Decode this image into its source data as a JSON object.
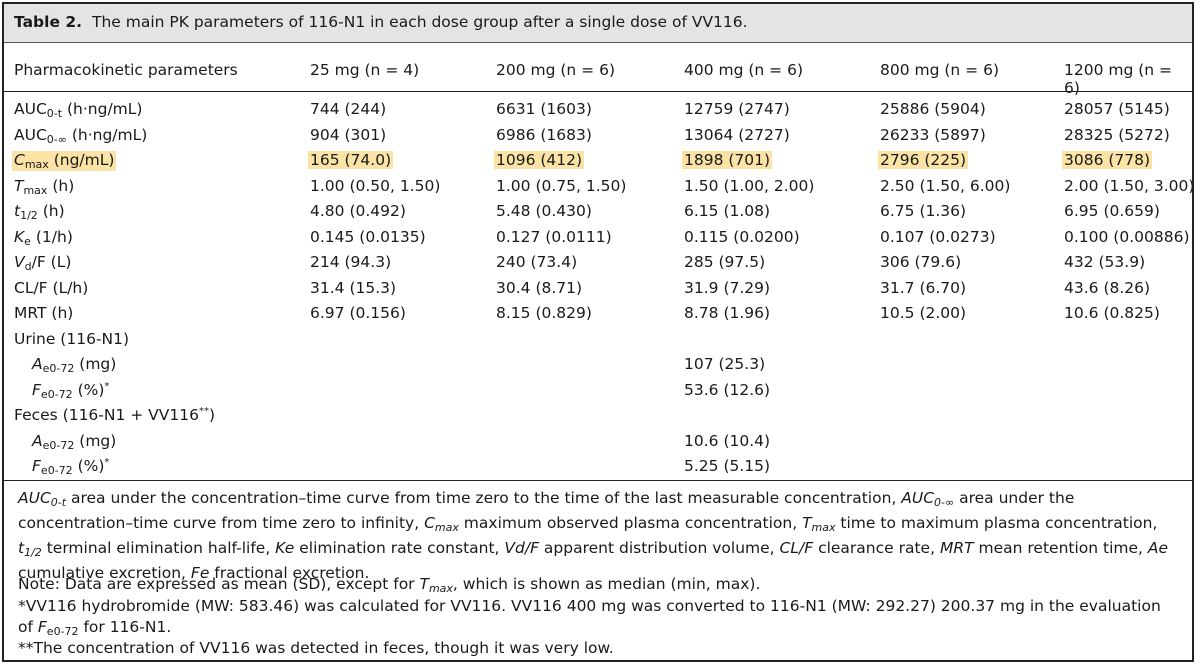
{
  "table": {
    "label": "Table 2.",
    "caption": "The main PK parameters of 116-N1 in each dose group after a single dose of VV116.",
    "header": {
      "param": "Pharmacokinetic parameters",
      "cols": [
        "25 mg (n = 4)",
        "200 mg (n = 6)",
        "400 mg (n = 6)",
        "800 mg (n = 6)",
        "1200 mg (n = 6)"
      ]
    },
    "rows": [
      {
        "label": "AUC",
        "sub": "0-t",
        "unit": " (h·ng/mL)",
        "values": [
          "744 (244)",
          "6631 (1603)",
          "12759 (2747)",
          "25886 (5904)",
          "28057 (5145)"
        ]
      },
      {
        "label": "AUC",
        "sub": "0-∞",
        "unit": " (h·ng/mL)",
        "values": [
          "904 (301)",
          "6986 (1683)",
          "13064 (2727)",
          "26233 (5897)",
          "28325 (5272)"
        ]
      },
      {
        "label": "C",
        "sub": "max",
        "unit": " (ng/mL)",
        "values": [
          "165 (74.0)",
          "1096 (412)",
          "1898 (701)",
          "2796 (225)",
          "3086 (778)"
        ]
      },
      {
        "label": "T",
        "sub": "max",
        "unit": " (h)",
        "values": [
          "1.00 (0.50, 1.50)",
          "1.00 (0.75, 1.50)",
          "1.50 (1.00, 2.00)",
          "2.50 (1.50, 6.00)",
          "2.00 (1.50, 3.00)"
        ]
      },
      {
        "label": "t",
        "sub": "1/2",
        "unit": " (h)",
        "values": [
          "4.80 (0.492)",
          "5.48 (0.430)",
          "6.15 (1.08)",
          "6.75 (1.36)",
          "6.95 (0.659)"
        ]
      },
      {
        "label": "K",
        "sub": "e",
        "unit": " (1/h)",
        "values": [
          "0.145 (0.0135)",
          "0.127 (0.0111)",
          "0.115 (0.0200)",
          "0.107 (0.0273)",
          "0.100 (0.00886)"
        ]
      },
      {
        "label": "V",
        "sub": "d",
        "unit": "/F (L)",
        "values": [
          "214 (94.3)",
          "240 (73.4)",
          "285 (97.5)",
          "306 (79.6)",
          "432 (53.9)"
        ]
      },
      {
        "label": "CL/F (L/h)",
        "sub": "",
        "unit": "",
        "values": [
          "31.4 (15.3)",
          "30.4 (8.71)",
          "31.9 (7.29)",
          "31.7 (6.70)",
          "43.6 (8.26)"
        ]
      },
      {
        "label": "MRT (h)",
        "sub": "",
        "unit": "",
        "values": [
          "6.97 (0.156)",
          "8.15 (0.829)",
          "8.78 (1.96)",
          "10.5 (2.00)",
          "10.6 (0.825)"
        ]
      }
    ],
    "urine": {
      "heading": "Urine (116-N1)",
      "ae": {
        "label": "A",
        "sub": "e0-72",
        "unit": " (mg)",
        "value": "107 (25.3)"
      },
      "fe": {
        "label": "F",
        "sub": "e0-72",
        "unit": " (%)",
        "sup": "*",
        "value": "53.6 (12.6)"
      }
    },
    "feces": {
      "heading": "Feces (116-N1 + VV116",
      "heading_sup": "**",
      "heading_close": ")",
      "ae": {
        "label": "A",
        "sub": "e0-72",
        "unit": " (mg)",
        "value": "10.6 (10.4)"
      },
      "fe": {
        "label": "F",
        "sub": "e0-72",
        "unit": " (%)",
        "sup": "*",
        "value": "5.25 (5.15)"
      }
    }
  },
  "footnotes": {
    "abbrev": "AUC0-t area under the concentration–time curve from time zero to the time of the last measurable concentration, AUC0-∞ area under the concentration–time curve from time zero to infinity, Cmax maximum observed plasma concentration, Tmax time to maximum plasma concentration, t1/2 terminal elimination half-life, Ke elimination rate constant, Vd/F apparent distribution volume, CL/F clearance rate, MRT mean retention time, Ae cumulative excretion, Fe fractional excretion.",
    "note": "Note: Data are expressed as mean (SD), except for Tmax, which is shown as median (min, max).",
    "star1": "*VV116 hydrobromide (MW: 583.46) was calculated for VV116. VV116 400 mg was converted to 116-N1 (MW: 292.27) 200.37 mg in the evaluation of Fe0-72 for 116-N1.",
    "star2": "**The concentration of VV116 was detected in feces, though it was very low."
  },
  "colors": {
    "highlight": "#fbe3a6",
    "title_bg": "#e4e4e4"
  }
}
